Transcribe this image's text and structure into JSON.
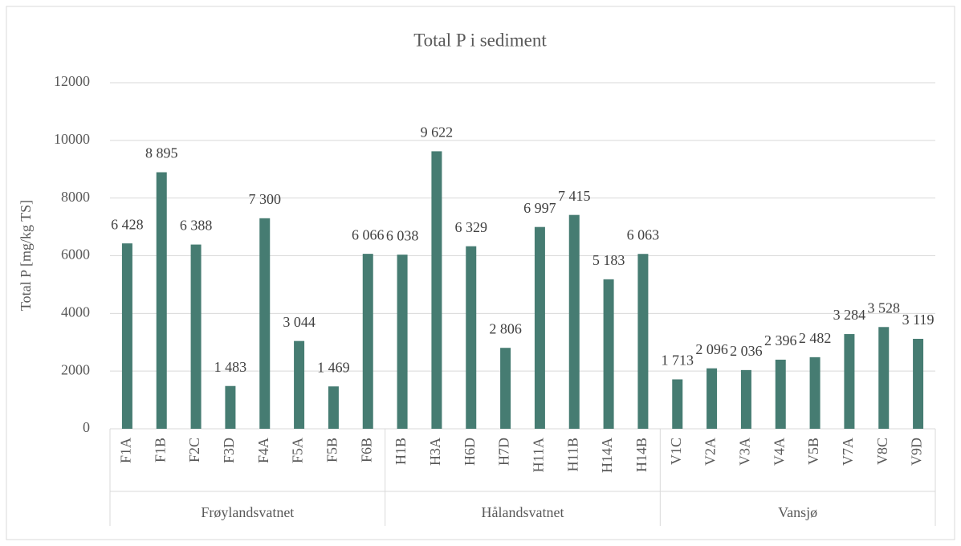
{
  "chart_data": {
    "type": "bar",
    "title": "Total P i sediment",
    "y_label": "Total P [mg/kg TS]",
    "category_groups": [
      {
        "name": "Frøylandsvatnet",
        "categories": [
          "F1A",
          "F1B",
          "F2C",
          "F3D",
          "F4A",
          "F5A",
          "F5B",
          "F6B"
        ]
      },
      {
        "name": "Hålandsvatnet",
        "categories": [
          "H1B",
          "H3A",
          "H6D",
          "H7D",
          "H11A",
          "H11B",
          "H14A",
          "H14B"
        ]
      },
      {
        "name": "Vansjø",
        "categories": [
          "V1C",
          "V2A",
          "V3A",
          "V4A",
          "V5B",
          "V7A",
          "V8C",
          "V9D"
        ]
      }
    ],
    "values": [
      6428,
      8895,
      6388,
      1483,
      7300,
      3044,
      1469,
      6066,
      6038,
      9622,
      6329,
      2806,
      6997,
      7415,
      5183,
      6063,
      1713,
      2096,
      2036,
      2396,
      2482,
      3284,
      3528,
      3119
    ],
    "value_labels": [
      "6 428",
      "8 895",
      "6 388",
      "1 483",
      "7 300",
      "3 044",
      "1 469",
      "6 066",
      "6 038",
      "9 622",
      "6 329",
      "2 806",
      "6 997",
      "7 415",
      "5 183",
      "6 063",
      "1 713",
      "2 096",
      "2 036",
      "2 396",
      "2 482",
      "3 284",
      "3 528",
      "3 119"
    ],
    "color": "#467c72",
    "ylim": [
      0,
      12000
    ],
    "yticks": [
      0,
      2000,
      4000,
      6000,
      8000,
      10000,
      12000
    ],
    "grid": true
  }
}
